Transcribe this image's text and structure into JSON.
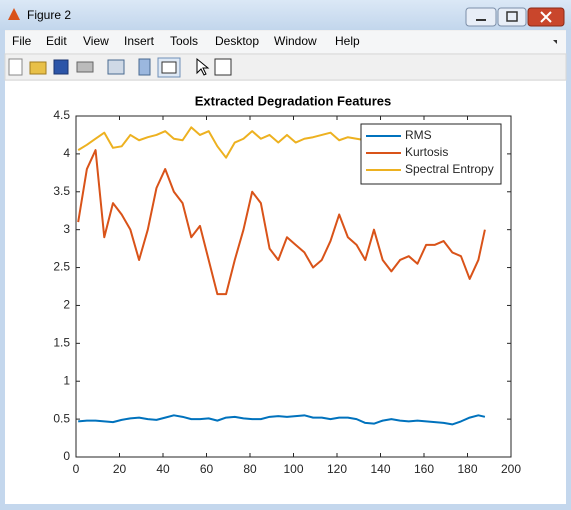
{
  "window": {
    "title": "Figure 2"
  },
  "menu": [
    "File",
    "Edit",
    "View",
    "Insert",
    "Tools",
    "Desktop",
    "Window",
    "Help"
  ],
  "chart_data": {
    "type": "line",
    "title": "Extracted Degradation Features",
    "x": [
      1,
      5,
      9,
      13,
      17,
      21,
      25,
      29,
      33,
      37,
      41,
      45,
      49,
      53,
      57,
      61,
      65,
      69,
      73,
      77,
      81,
      85,
      89,
      93,
      97,
      101,
      105,
      109,
      113,
      117,
      121,
      125,
      129,
      133,
      137,
      141,
      145,
      149,
      153,
      157,
      161,
      165,
      169,
      173,
      177,
      181,
      185,
      188
    ],
    "series": [
      {
        "name": "RMS",
        "color": "#0072bd",
        "values": [
          0.47,
          0.48,
          0.48,
          0.47,
          0.46,
          0.49,
          0.51,
          0.52,
          0.5,
          0.49,
          0.52,
          0.55,
          0.53,
          0.5,
          0.5,
          0.51,
          0.48,
          0.52,
          0.53,
          0.51,
          0.5,
          0.5,
          0.53,
          0.54,
          0.53,
          0.54,
          0.55,
          0.52,
          0.52,
          0.5,
          0.52,
          0.52,
          0.5,
          0.45,
          0.44,
          0.48,
          0.5,
          0.48,
          0.47,
          0.48,
          0.47,
          0.46,
          0.45,
          0.43,
          0.47,
          0.52,
          0.55,
          0.53
        ]
      },
      {
        "name": "Kurtosis",
        "color": "#d95319",
        "values": [
          3.1,
          3.8,
          4.05,
          2.9,
          3.35,
          3.2,
          3.0,
          2.6,
          3.0,
          3.55,
          3.8,
          3.5,
          3.35,
          2.9,
          3.05,
          2.6,
          2.15,
          2.15,
          2.6,
          3.0,
          3.5,
          3.35,
          2.75,
          2.6,
          2.9,
          2.8,
          2.7,
          2.5,
          2.6,
          2.85,
          3.2,
          2.9,
          2.8,
          2.6,
          3.0,
          2.6,
          2.45,
          2.6,
          2.65,
          2.55,
          2.8,
          2.8,
          2.85,
          2.7,
          2.65,
          2.35,
          2.6,
          3.0
        ]
      },
      {
        "name": "Spectral Entropy",
        "color": "#edb120",
        "values": [
          4.05,
          4.12,
          4.2,
          4.28,
          4.08,
          4.1,
          4.25,
          4.18,
          4.22,
          4.25,
          4.3,
          4.2,
          4.18,
          4.35,
          4.25,
          4.3,
          4.1,
          3.95,
          4.15,
          4.2,
          4.3,
          4.2,
          4.25,
          4.15,
          4.25,
          4.15,
          4.2,
          4.22,
          4.25,
          4.28,
          4.18,
          4.22,
          4.2,
          4.18,
          4.2,
          4.22,
          4.2,
          4.18,
          4.22,
          4.2,
          4.2,
          4.22,
          4.2,
          4.22,
          4.2,
          4.22,
          4.2,
          4.2
        ]
      }
    ],
    "xlim": [
      0,
      200
    ],
    "xticks": [
      0,
      20,
      40,
      60,
      80,
      100,
      120,
      140,
      160,
      180,
      200
    ],
    "ylim": [
      0,
      4.5
    ],
    "yticks": [
      0,
      0.5,
      1,
      1.5,
      2,
      2.5,
      3,
      3.5,
      4,
      4.5
    ],
    "legend": "upper right"
  }
}
